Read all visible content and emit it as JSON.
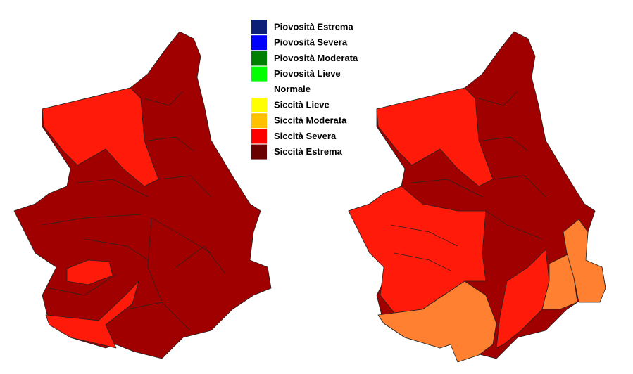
{
  "legend": {
    "items": [
      {
        "label": "Piovosità Estrema",
        "color": "#0b1f78"
      },
      {
        "label": "Piovosità Severa",
        "color": "#0000ff"
      },
      {
        "label": "Piovosità Moderata",
        "color": "#008000"
      },
      {
        "label": "Piovosità Lieve",
        "color": "#00ff00"
      },
      {
        "label": "Normale",
        "color": "#ffffff"
      },
      {
        "label": "Siccità Lieve",
        "color": "#ffff00"
      },
      {
        "label": "Siccità Moderata",
        "color": "#ffc000"
      },
      {
        "label": "Siccità Severa",
        "color": "#ff0000"
      },
      {
        "label": "Siccità Estrema",
        "color": "#6b0000"
      }
    ]
  }
}
